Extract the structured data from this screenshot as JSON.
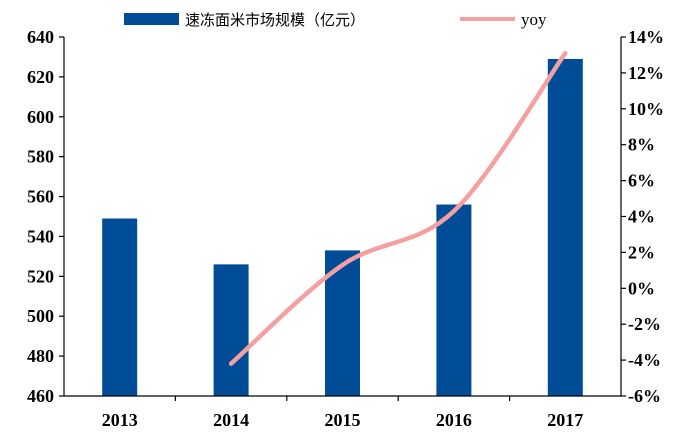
{
  "chart_data": {
    "type": "bar+line",
    "categories": [
      "2013",
      "2014",
      "2015",
      "2016",
      "2017"
    ],
    "series": [
      {
        "name": "速冻面米市场规模（亿元）",
        "type": "bar",
        "axis": "left",
        "color": "#004C97",
        "values": [
          549,
          526,
          533,
          556,
          629
        ]
      },
      {
        "name": "yoy",
        "type": "line",
        "axis": "right",
        "color": "#F4A0A0",
        "values": [
          null,
          -4.2,
          1.3,
          4.3,
          13.1
        ]
      }
    ],
    "y_left": {
      "range": [
        460,
        640
      ],
      "ticks": [
        "640",
        "620",
        "600",
        "580",
        "560",
        "540",
        "520",
        "500",
        "480",
        "460"
      ]
    },
    "y_right": {
      "range": [
        -6,
        14
      ],
      "ticks": [
        "14%",
        "12%",
        "10%",
        "8%",
        "6%",
        "4%",
        "2%",
        "0%",
        "-2%",
        "-4%",
        "-6%"
      ]
    },
    "grid": false,
    "legend_position": "top"
  }
}
